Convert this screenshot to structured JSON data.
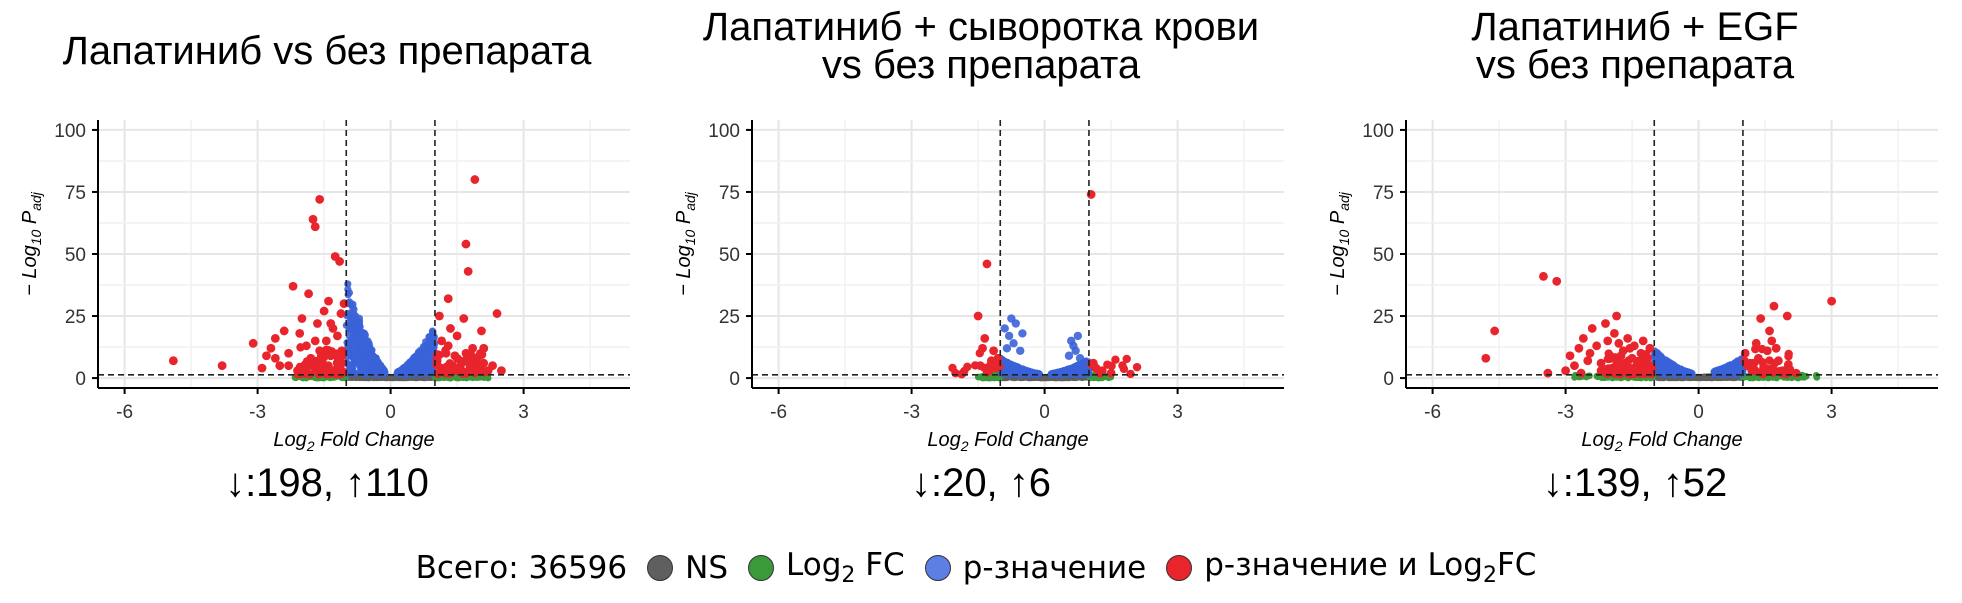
{
  "legend": {
    "total": "Всего: 36596",
    "items": [
      {
        "label": "NS",
        "color": "#5f5f5f"
      },
      {
        "label_main": "Log",
        "label_sub": "2",
        "label_end": " FC",
        "color": "#3a9a3a"
      },
      {
        "label": "p-значение",
        "color": "#5c7ee5"
      },
      {
        "label_main": "p-значение и Log",
        "label_sub": "2",
        "label_end": "FC",
        "color": "#e8242c"
      }
    ]
  },
  "colors": {
    "ns": "#5f5f5f",
    "fc": "#3a9a3a",
    "p": "#3b63d8",
    "both": "#e8242c"
  },
  "chart_data": [
    {
      "type": "scatter",
      "title_lines": [
        "Лапатиниб vs без препарата"
      ],
      "counts": "↓:198, ↑110",
      "xlabel": "Log2 Fold Change",
      "ylabel": "−Log10 Padj",
      "xlim": [
        -6.6,
        5.4
      ],
      "ylim": [
        -4,
        104
      ],
      "xticks": [
        -6,
        -3,
        0,
        3
      ],
      "yticks": [
        0,
        25,
        50,
        75,
        100
      ],
      "fc_cutoffs": [
        -1,
        1
      ],
      "p_cutoff": 1.3,
      "grid": true,
      "clouds": {
        "blue_left": {
          "x0": -1.0,
          "x1": -0.12,
          "peak_x": -0.98,
          "peak_y": 40
        },
        "blue_right": {
          "x0": 0.15,
          "x1": 1.0,
          "peak_x": 0.98,
          "peak_y": 20
        },
        "green_range": [
          -2.2,
          2.2
        ]
      },
      "red_points": [
        [
          -4.9,
          7
        ],
        [
          -3.8,
          5
        ],
        [
          -3.1,
          14
        ],
        [
          -2.9,
          4
        ],
        [
          -2.8,
          9
        ],
        [
          -2.7,
          12
        ],
        [
          -2.6,
          16
        ],
        [
          -2.5,
          5
        ],
        [
          -2.4,
          19
        ],
        [
          -2.3,
          10
        ],
        [
          -2.2,
          37
        ],
        [
          -2.1,
          3
        ],
        [
          -2.0,
          24
        ],
        [
          -1.9,
          13
        ],
        [
          -1.85,
          34
        ],
        [
          -1.8,
          8
        ],
        [
          -1.75,
          64
        ],
        [
          -1.7,
          61
        ],
        [
          -1.65,
          22
        ],
        [
          -1.6,
          72
        ],
        [
          -1.55,
          6
        ],
        [
          -1.5,
          27
        ],
        [
          -1.45,
          15
        ],
        [
          -1.4,
          31
        ],
        [
          -1.35,
          9
        ],
        [
          -1.3,
          20
        ],
        [
          -1.25,
          49
        ],
        [
          -1.2,
          4
        ],
        [
          -1.15,
          47
        ],
        [
          -1.12,
          26
        ],
        [
          -1.1,
          11
        ],
        [
          -1.05,
          30
        ],
        [
          -2.6,
          8
        ],
        [
          -2.3,
          5
        ],
        [
          -1.9,
          3
        ],
        [
          -1.6,
          11
        ],
        [
          -1.4,
          3
        ],
        [
          -1.2,
          17
        ],
        [
          -1.1,
          6
        ],
        [
          -2.05,
          18
        ],
        [
          -1.7,
          15
        ],
        [
          -1.35,
          22
        ],
        [
          1.05,
          7
        ],
        [
          1.1,
          25
        ],
        [
          1.15,
          15
        ],
        [
          1.2,
          4
        ],
        [
          1.25,
          10
        ],
        [
          1.3,
          13
        ],
        [
          1.35,
          20
        ],
        [
          1.4,
          5
        ],
        [
          1.45,
          9
        ],
        [
          1.5,
          17
        ],
        [
          1.55,
          3
        ],
        [
          1.6,
          6
        ],
        [
          1.65,
          24
        ],
        [
          1.7,
          54
        ],
        [
          1.75,
          43
        ],
        [
          1.8,
          8
        ],
        [
          1.85,
          12
        ],
        [
          1.9,
          80
        ],
        [
          1.95,
          4
        ],
        [
          2.0,
          9
        ],
        [
          2.05,
          19
        ],
        [
          2.1,
          6
        ],
        [
          2.2,
          3
        ],
        [
          2.3,
          5
        ],
        [
          2.4,
          26
        ],
        [
          2.5,
          3
        ],
        [
          1.3,
          32
        ],
        [
          1.5,
          8
        ],
        [
          1.8,
          4
        ],
        [
          2.1,
          12
        ],
        [
          1.15,
          3
        ],
        [
          1.7,
          10
        ]
      ]
    },
    {
      "type": "scatter",
      "title_lines": [
        "Лапатиниб + сыворотка крови",
        "vs без препарата"
      ],
      "counts": "↓:20, ↑6",
      "xlabel": "Log2 Fold Change",
      "ylabel": "−Log10 Padj",
      "xlim": [
        -6.6,
        5.4
      ],
      "ylim": [
        -4,
        104
      ],
      "xticks": [
        -6,
        -3,
        0,
        3
      ],
      "yticks": [
        0,
        25,
        50,
        75,
        100
      ],
      "fc_cutoffs": [
        -1,
        1
      ],
      "p_cutoff": 1.3,
      "grid": true,
      "clouds": {
        "blue_left": {
          "x0": -1.0,
          "x1": -0.12,
          "peak_x": -0.98,
          "peak_y": 8
        },
        "blue_right": {
          "x0": 0.15,
          "x1": 1.0,
          "peak_x": 0.95,
          "peak_y": 7
        },
        "green_range": [
          -1.5,
          1.5
        ]
      },
      "blue_extra": [
        [
          -0.9,
          20
        ],
        [
          -0.8,
          17
        ],
        [
          -0.75,
          24
        ],
        [
          -0.7,
          14
        ],
        [
          -0.65,
          22
        ],
        [
          -0.55,
          11
        ],
        [
          -0.5,
          18
        ],
        [
          -0.85,
          12
        ],
        [
          0.6,
          15
        ],
        [
          0.65,
          13
        ],
        [
          0.7,
          11
        ],
        [
          0.75,
          17
        ],
        [
          0.8,
          8
        ],
        [
          0.55,
          9
        ]
      ],
      "red_points": [
        [
          -1.5,
          25
        ],
        [
          -1.3,
          46
        ],
        [
          -1.2,
          7
        ],
        [
          -1.4,
          12
        ],
        [
          -1.1,
          4
        ],
        [
          -1.25,
          3
        ],
        [
          -1.35,
          16
        ],
        [
          -1.05,
          8
        ],
        [
          -1.15,
          11
        ],
        [
          -1.45,
          5
        ],
        [
          1.05,
          74
        ],
        [
          1.15,
          4
        ],
        [
          1.3,
          3
        ],
        [
          1.5,
          2
        ],
        [
          1.1,
          6
        ],
        [
          1.25,
          2
        ]
      ]
    },
    {
      "type": "scatter",
      "title_lines": [
        "Лапатиниб + EGF",
        "vs без препарата"
      ],
      "counts": "↓:139, ↑52",
      "xlabel": "Log2 Fold Change",
      "ylabel": "−Log10 Padj",
      "xlim": [
        -6.6,
        5.4
      ],
      "ylim": [
        -4,
        104
      ],
      "xticks": [
        -6,
        -3,
        0,
        3
      ],
      "yticks": [
        0,
        25,
        50,
        75,
        100
      ],
      "fc_cutoffs": [
        -1,
        1
      ],
      "p_cutoff": 1.3,
      "grid": true,
      "clouds": {
        "blue_left": {
          "x0": -1.0,
          "x1": -0.15,
          "peak_x": -0.98,
          "peak_y": 11
        },
        "blue_right": {
          "x0": 0.35,
          "x1": 1.0,
          "peak_x": 0.98,
          "peak_y": 8
        },
        "green_range": [
          -2.8,
          2.7
        ]
      },
      "red_points": [
        [
          -4.8,
          8
        ],
        [
          -4.6,
          19
        ],
        [
          -3.5,
          41
        ],
        [
          -3.2,
          39
        ],
        [
          -3.4,
          2
        ],
        [
          -3.0,
          3
        ],
        [
          -2.9,
          9
        ],
        [
          -2.8,
          5
        ],
        [
          -2.7,
          12
        ],
        [
          -2.6,
          16
        ],
        [
          -2.5,
          7
        ],
        [
          -2.4,
          20
        ],
        [
          -2.3,
          13
        ],
        [
          -2.2,
          6
        ],
        [
          -2.1,
          22
        ],
        [
          -2.0,
          9
        ],
        [
          -1.9,
          18
        ],
        [
          -1.85,
          25
        ],
        [
          -1.8,
          14
        ],
        [
          -1.7,
          11
        ],
        [
          -1.6,
          16
        ],
        [
          -1.5,
          8
        ],
        [
          -1.45,
          13
        ],
        [
          -1.4,
          5
        ],
        [
          -1.3,
          10
        ],
        [
          -1.25,
          15
        ],
        [
          -1.2,
          7
        ],
        [
          -1.1,
          12
        ],
        [
          -1.05,
          4
        ],
        [
          -2.65,
          2
        ],
        [
          -2.2,
          3
        ],
        [
          -1.95,
          4
        ],
        [
          -1.65,
          6
        ],
        [
          -1.35,
          3
        ],
        [
          -1.15,
          8
        ],
        [
          -2.45,
          10
        ],
        [
          -2.05,
          15
        ],
        [
          -1.75,
          9
        ],
        [
          -1.55,
          12
        ],
        [
          1.05,
          10
        ],
        [
          1.1,
          5
        ],
        [
          1.2,
          3
        ],
        [
          1.3,
          14
        ],
        [
          1.35,
          8
        ],
        [
          1.4,
          24
        ],
        [
          1.5,
          4
        ],
        [
          1.6,
          19
        ],
        [
          1.7,
          29
        ],
        [
          1.75,
          12
        ],
        [
          1.8,
          7
        ],
        [
          1.9,
          3
        ],
        [
          2.0,
          25
        ],
        [
          2.2,
          2
        ],
        [
          3.0,
          31
        ],
        [
          1.25,
          6
        ],
        [
          1.55,
          11
        ],
        [
          1.65,
          15
        ]
      ]
    }
  ]
}
